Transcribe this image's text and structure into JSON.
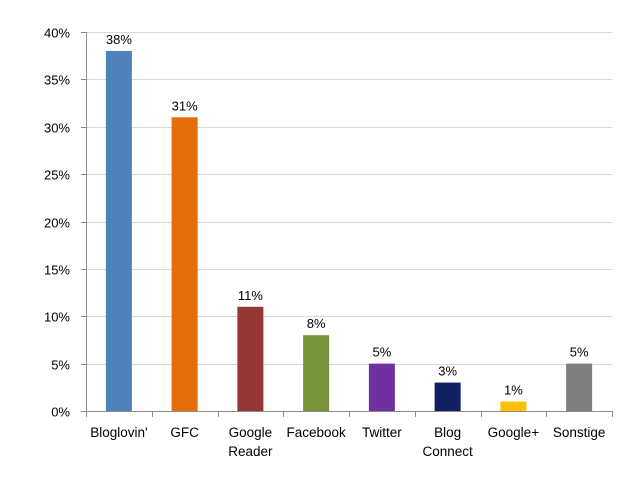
{
  "chart_data": {
    "type": "bar",
    "categories": [
      [
        "Bloglovin'"
      ],
      [
        "GFC"
      ],
      [
        "Google",
        "Reader"
      ],
      [
        "Facebook"
      ],
      [
        "Twitter"
      ],
      [
        "Blog",
        "Connect"
      ],
      [
        "Google+"
      ],
      [
        "Sonstige"
      ]
    ],
    "values": [
      38,
      31,
      11,
      8,
      5,
      3,
      1,
      5
    ],
    "data_labels": [
      "38%",
      "31%",
      "11%",
      "8%",
      "5%",
      "3%",
      "1%",
      "5%"
    ],
    "colors": [
      "#4F81BD",
      "#E46C0A",
      "#953735",
      "#77933C",
      "#7030A0",
      "#0F1F5F",
      "#FFC000",
      "#7F7F7F"
    ],
    "ylim": [
      0,
      40
    ],
    "yticks": [
      0,
      5,
      10,
      15,
      20,
      25,
      30,
      35,
      40
    ],
    "ytick_labels": [
      "0%",
      "5%",
      "10%",
      "15%",
      "20%",
      "25%",
      "30%",
      "35%",
      "40%"
    ],
    "grid": true,
    "title": "",
    "xlabel": "",
    "ylabel": ""
  }
}
